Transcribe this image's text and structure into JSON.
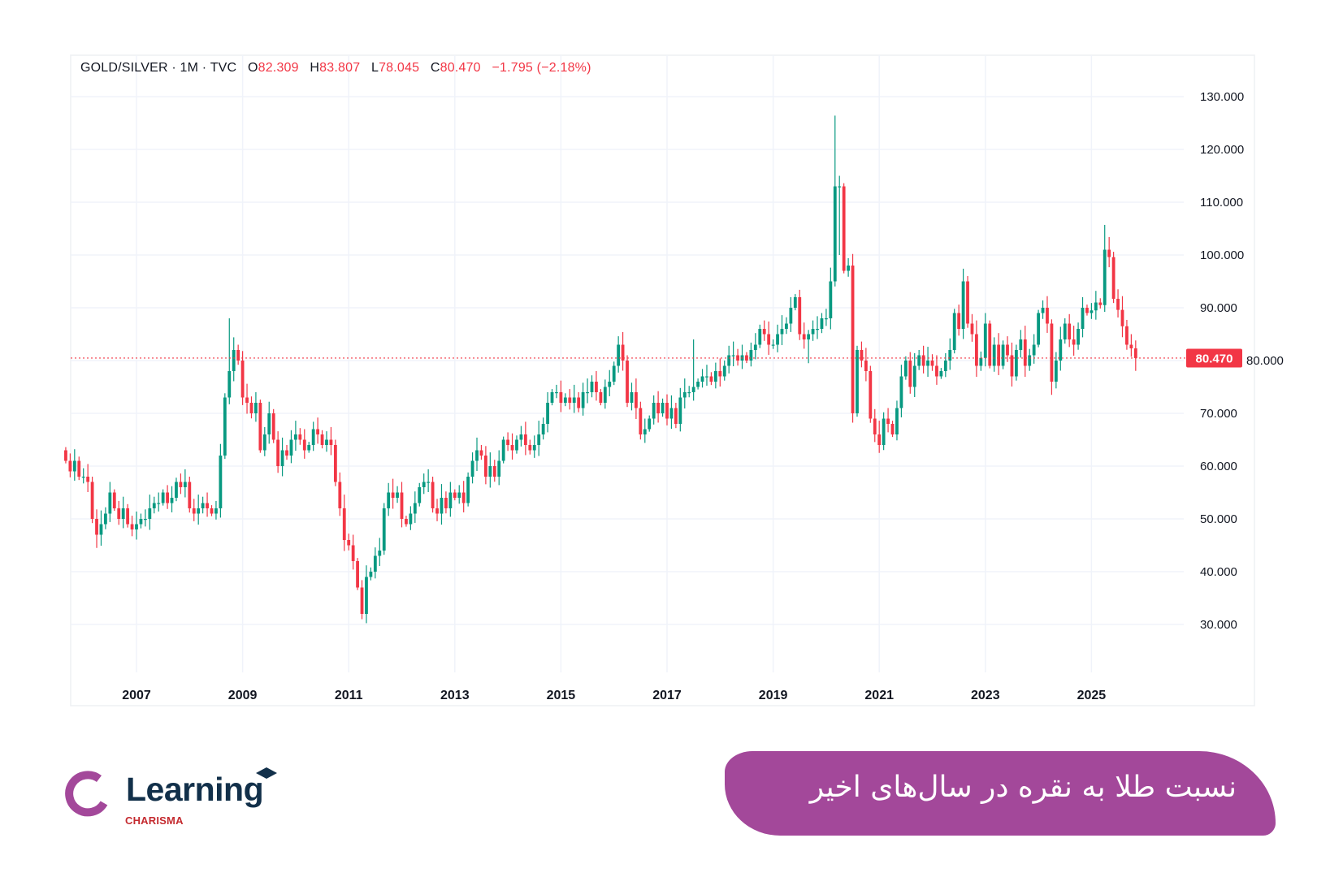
{
  "header": {
    "symbol": "GOLD/SILVER · 1M · TVC",
    "o_label": "O",
    "o": "82.309",
    "h_label": "H",
    "h": "83.807",
    "l_label": "L",
    "l": "78.045",
    "c_label": "C",
    "c": "80.470",
    "change": "−1.795 (−2.18%)"
  },
  "colors": {
    "up": "#089981",
    "down": "#f23645",
    "grid": "#f0f3fa",
    "text": "#131722",
    "banner": "#a3489a",
    "logo_purple": "#a3489a",
    "logo_navy": "#12304a",
    "logo_red": "#c42a2f"
  },
  "chart_data": {
    "type": "candlestick",
    "interval": "1M",
    "start_month": "2005-09",
    "first_open": 63,
    "ylim": [
      20,
      135
    ],
    "y_ticks": [
      "30.000",
      "40.000",
      "50.000",
      "60.000",
      "70.000",
      "80.000",
      "90.000",
      "100.000",
      "110.000",
      "120.000",
      "130.000"
    ],
    "x_ticks": [
      "2007",
      "2009",
      "2011",
      "2013",
      "2015",
      "2017",
      "2019",
      "2021",
      "2023",
      "2025"
    ],
    "grid": true,
    "last_price": 80.47,
    "last_price_label": "80.470",
    "closes": {
      "2005": [
        61,
        59,
        61,
        58
      ],
      "2006": [
        58,
        57,
        50,
        47,
        49,
        51,
        55,
        52,
        50,
        52,
        49,
        48
      ],
      "2007": [
        49,
        50,
        50,
        52,
        53,
        53,
        55,
        53,
        54,
        57,
        56,
        57
      ],
      "2008": [
        52,
        51,
        52,
        53,
        52,
        51,
        52,
        62,
        73,
        78,
        82,
        80
      ],
      "2009": [
        73,
        72,
        70,
        72,
        63,
        66,
        70,
        65,
        60,
        63,
        62,
        65
      ],
      "2010": [
        66,
        65,
        63,
        64,
        67,
        66,
        64,
        65,
        64,
        57,
        52,
        46
      ],
      "2011": [
        45,
        42,
        37,
        32,
        39,
        40,
        43,
        44,
        52,
        55,
        54,
        55
      ],
      "2012": [
        50,
        49,
        51,
        53,
        56,
        57,
        57,
        52,
        51,
        54,
        52,
        55
      ],
      "2013": [
        54,
        55,
        53,
        58,
        61,
        63,
        62,
        58,
        60,
        58,
        61,
        65
      ],
      "2014": [
        64,
        63,
        65,
        66,
        64,
        63,
        64,
        66,
        68,
        72,
        74,
        74
      ],
      "2015": [
        72,
        73,
        72,
        73,
        71,
        74,
        74,
        76,
        74,
        72,
        75,
        76
      ],
      "2016": [
        79,
        83,
        80,
        72,
        74,
        71,
        66,
        67,
        69,
        72,
        70,
        72
      ],
      "2017": [
        69,
        71,
        68,
        73,
        74,
        74,
        75,
        76,
        77,
        77,
        76,
        78
      ],
      "2018": [
        77,
        79,
        81,
        81,
        80,
        81,
        80,
        82,
        83,
        86,
        85,
        83
      ],
      "2019": [
        83,
        85,
        86,
        87,
        90,
        92,
        85,
        84,
        85,
        86,
        86,
        88
      ],
      "2020": [
        88,
        95,
        113,
        113,
        97,
        98,
        70,
        82,
        80,
        78,
        69,
        66
      ],
      "2021": [
        64,
        69,
        68,
        66,
        71,
        77,
        80,
        75,
        79,
        81,
        79,
        80
      ],
      "2022": [
        79,
        77,
        78,
        80,
        82,
        89,
        86,
        95,
        87,
        85,
        79,
        80.5
      ],
      "2023": [
        87,
        79,
        83,
        79,
        83,
        81,
        77,
        82,
        84,
        79,
        81,
        83
      ],
      "2024": [
        89,
        90,
        87,
        76,
        80,
        84,
        87,
        84,
        83,
        86,
        90,
        89
      ],
      "2025": [
        89.5,
        91,
        90.5,
        101,
        99.6,
        91.7,
        89.6,
        86.5,
        83,
        82.309,
        80.47
      ]
    },
    "extremes": {
      "2006-04": {
        "l": 44.5
      },
      "2008-10": {
        "h": 88
      },
      "2011-04": {
        "l": 31
      },
      "2017-07": {
        "h": 84
      },
      "2019-09": {
        "l": 79.5
      },
      "2020-03": {
        "h": 126.4
      },
      "2020-04": {
        "h": 115,
        "l": 100
      },
      "2021-01": {
        "l": 62.5
      },
      "2024-04": {
        "l": 73.5
      },
      "2025-04": {
        "h": 105.7
      },
      "2025-11": {
        "h": 83.807,
        "l": 78.045
      }
    }
  },
  "logo": {
    "word": "Learning",
    "sub": "CHARISMA"
  },
  "banner": {
    "title": "نسبت طلا به نقره در سال‌های اخیر"
  }
}
